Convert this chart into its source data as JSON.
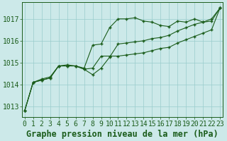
{
  "title": "Graphe pression niveau de la mer (hPa)",
  "x_hours": [
    0,
    1,
    2,
    3,
    4,
    5,
    6,
    7,
    8,
    9,
    10,
    11,
    12,
    13,
    14,
    15,
    16,
    17,
    18,
    19,
    20,
    21,
    22,
    23
  ],
  "line1": [
    1012.8,
    1014.1,
    1014.25,
    1014.35,
    1014.85,
    1014.9,
    1014.85,
    1014.75,
    1015.8,
    1015.85,
    1016.6,
    1017.0,
    1017.0,
    1017.05,
    1016.9,
    1016.85,
    1016.7,
    1016.65,
    1016.9,
    1016.85,
    1017.0,
    1016.85,
    1017.0,
    1017.5
  ],
  "line2": [
    1012.8,
    1014.1,
    1014.2,
    1014.3,
    1014.85,
    1014.85,
    1014.85,
    1014.7,
    1014.45,
    1014.75,
    1015.25,
    1015.85,
    1015.9,
    1015.95,
    1016.0,
    1016.1,
    1016.15,
    1016.25,
    1016.45,
    1016.6,
    1016.75,
    1016.85,
    1016.9,
    1017.5
  ],
  "line3": [
    1012.8,
    1014.1,
    1014.2,
    1014.3,
    1014.85,
    1014.85,
    1014.85,
    1014.7,
    1014.75,
    1015.3,
    1015.3,
    1015.3,
    1015.35,
    1015.4,
    1015.45,
    1015.55,
    1015.65,
    1015.7,
    1015.9,
    1016.05,
    1016.2,
    1016.35,
    1016.5,
    1017.5
  ],
  "bg_color": "#cce9e9",
  "line_color": "#1a5c1a",
  "grid_color": "#99cccc",
  "ylim_min": 1012.5,
  "ylim_max": 1017.75,
  "yticks": [
    1013,
    1014,
    1015,
    1016,
    1017
  ],
  "title_fontsize": 8.5,
  "tick_fontsize": 7.0,
  "figwidth": 3.2,
  "figheight": 2.0
}
